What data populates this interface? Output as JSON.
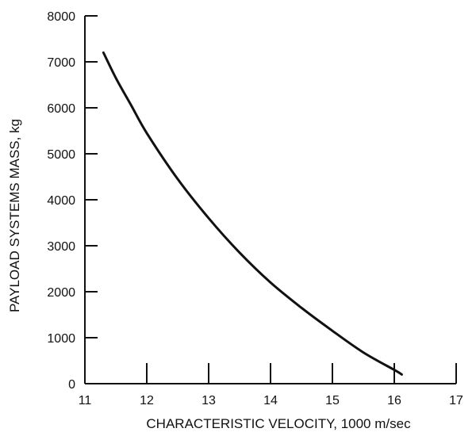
{
  "chart_data": {
    "type": "line",
    "title": "",
    "xlabel": "CHARACTERISTIC VELOCITY, 1000 m/sec",
    "ylabel": "PAYLOAD SYSTEMS MASS, kg",
    "xlim": [
      11,
      17
    ],
    "ylim": [
      0,
      8000
    ],
    "x_ticks": [
      11,
      12,
      13,
      14,
      15,
      16,
      17
    ],
    "y_ticks": [
      0,
      1000,
      2000,
      3000,
      4000,
      5000,
      6000,
      7000,
      8000
    ],
    "grid": false,
    "series": [
      {
        "x": [
          11.3,
          11.5,
          11.75,
          12.0,
          12.5,
          13.0,
          13.5,
          14.0,
          14.5,
          15.0,
          15.5,
          16.0,
          16.12
        ],
        "values": [
          7200,
          6650,
          6050,
          5450,
          4450,
          3600,
          2850,
          2200,
          1650,
          1150,
          680,
          300,
          200
        ]
      }
    ]
  }
}
